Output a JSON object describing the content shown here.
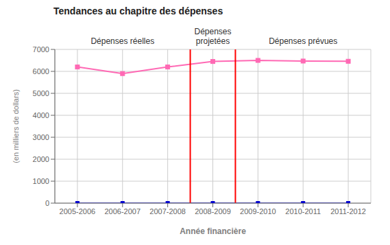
{
  "chart_data": {
    "type": "line",
    "title": "Tendances au chapitre des dépenses",
    "xlabel": "Année financière",
    "ylabel": "(en milliers de dollars)",
    "categories": [
      "2005-2006",
      "2006-2007",
      "2007-2008",
      "2008-2009",
      "2009-2010",
      "2010-2011",
      "2011-2012"
    ],
    "series": [
      {
        "color": "#FF69B4",
        "values": [
          6200,
          5900,
          6200,
          6450,
          6500,
          6470,
          6460
        ],
        "marker": "square"
      },
      {
        "color": "#0000CD",
        "values": [
          0,
          0,
          0,
          0,
          0,
          0,
          0
        ],
        "marker": "square"
      }
    ],
    "ylim": [
      0,
      7000
    ],
    "yticks": [
      0,
      1000,
      2000,
      3000,
      4000,
      5000,
      6000,
      7000
    ],
    "grid": true,
    "annotations": [
      {
        "text": "Dépenses réelles",
        "categories": [
          "2005-2006",
          "2007-2008"
        ]
      },
      {
        "text": "Dépenses\nprojetées",
        "categories": [
          "2008-2009",
          "2008-2009"
        ]
      },
      {
        "text": "Dépenses prévues",
        "categories": [
          "2009-2010",
          "2011-2012"
        ]
      }
    ],
    "reference_lines": [
      {
        "between": [
          "2007-2008",
          "2008-2009"
        ],
        "color": "#FF0000"
      },
      {
        "between": [
          "2008-2009",
          "2009-2010"
        ],
        "color": "#FF0000"
      }
    ]
  }
}
